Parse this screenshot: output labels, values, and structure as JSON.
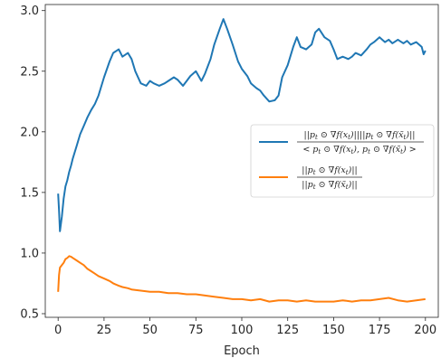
{
  "chart_data": {
    "type": "line",
    "xlabel": "Epoch",
    "ylabel": "",
    "xlim": [
      -7,
      207
    ],
    "ylim": [
      0.47,
      3.05
    ],
    "xticks": [
      0,
      25,
      50,
      75,
      100,
      125,
      150,
      175,
      200
    ],
    "yticks": [
      0.5,
      1.0,
      1.5,
      2.0,
      2.5,
      3.0
    ],
    "ytick_labels": [
      "0.5",
      "1.0",
      "1.5",
      "2.0",
      "2.5",
      "3.0"
    ],
    "grid": false,
    "legend_position": "center-right",
    "series": [
      {
        "name": "||p_t ⊙ ∇f(x_t)|| ||p_t ⊙ ∇f(x̃_t)|| / <p_t ⊙ ∇f(x_t), p_t ⊙ ∇f(x̃_t)>",
        "color": "#1f77b4",
        "x": [
          0,
          0.5,
          1,
          2,
          3,
          4,
          5,
          6,
          7,
          8,
          10,
          12,
          14,
          16,
          18,
          20,
          22,
          25,
          28,
          30,
          33,
          35,
          38,
          40,
          42,
          45,
          48,
          50,
          52,
          55,
          58,
          60,
          63,
          65,
          68,
          70,
          72,
          75,
          78,
          80,
          83,
          85,
          88,
          90,
          92,
          95,
          98,
          100,
          103,
          105,
          108,
          110,
          112,
          115,
          118,
          120,
          122,
          125,
          128,
          130,
          132,
          135,
          138,
          140,
          142,
          145,
          148,
          150,
          152,
          155,
          158,
          160,
          162,
          165,
          168,
          170,
          172,
          175,
          178,
          180,
          182,
          185,
          188,
          190,
          192,
          195,
          198,
          199,
          200
        ],
        "y": [
          1.49,
          1.35,
          1.18,
          1.3,
          1.45,
          1.55,
          1.6,
          1.67,
          1.72,
          1.78,
          1.88,
          1.98,
          2.05,
          2.12,
          2.18,
          2.23,
          2.3,
          2.45,
          2.58,
          2.65,
          2.68,
          2.62,
          2.65,
          2.6,
          2.5,
          2.4,
          2.38,
          2.42,
          2.4,
          2.38,
          2.4,
          2.42,
          2.45,
          2.43,
          2.38,
          2.42,
          2.46,
          2.5,
          2.42,
          2.48,
          2.6,
          2.72,
          2.85,
          2.93,
          2.85,
          2.72,
          2.58,
          2.52,
          2.46,
          2.4,
          2.36,
          2.34,
          2.3,
          2.25,
          2.26,
          2.3,
          2.45,
          2.55,
          2.7,
          2.78,
          2.7,
          2.68,
          2.72,
          2.82,
          2.85,
          2.78,
          2.75,
          2.68,
          2.6,
          2.62,
          2.6,
          2.62,
          2.65,
          2.63,
          2.68,
          2.72,
          2.74,
          2.78,
          2.74,
          2.76,
          2.73,
          2.76,
          2.73,
          2.75,
          2.72,
          2.74,
          2.7,
          2.64,
          2.67
        ]
      },
      {
        "name": "||p_t ⊙ ∇f(x_t)|| / ||p_t ⊙ ∇f(x̃_t)||",
        "color": "#ff7f0e",
        "x": [
          0,
          0.5,
          1,
          2,
          3,
          4,
          5,
          6,
          7,
          8,
          10,
          12,
          14,
          16,
          18,
          20,
          22,
          25,
          28,
          30,
          33,
          35,
          38,
          40,
          45,
          50,
          55,
          60,
          65,
          70,
          75,
          80,
          85,
          90,
          95,
          100,
          105,
          110,
          115,
          120,
          125,
          130,
          135,
          140,
          145,
          150,
          155,
          160,
          165,
          170,
          175,
          180,
          185,
          190,
          195,
          200
        ],
        "y": [
          0.68,
          0.82,
          0.88,
          0.9,
          0.92,
          0.95,
          0.96,
          0.975,
          0.97,
          0.96,
          0.94,
          0.92,
          0.9,
          0.87,
          0.85,
          0.83,
          0.81,
          0.79,
          0.77,
          0.75,
          0.73,
          0.72,
          0.71,
          0.7,
          0.69,
          0.68,
          0.68,
          0.67,
          0.67,
          0.66,
          0.66,
          0.65,
          0.64,
          0.63,
          0.62,
          0.62,
          0.61,
          0.62,
          0.6,
          0.61,
          0.61,
          0.6,
          0.61,
          0.6,
          0.6,
          0.6,
          0.61,
          0.6,
          0.61,
          0.61,
          0.62,
          0.63,
          0.61,
          0.6,
          0.61,
          0.62
        ]
      }
    ]
  }
}
